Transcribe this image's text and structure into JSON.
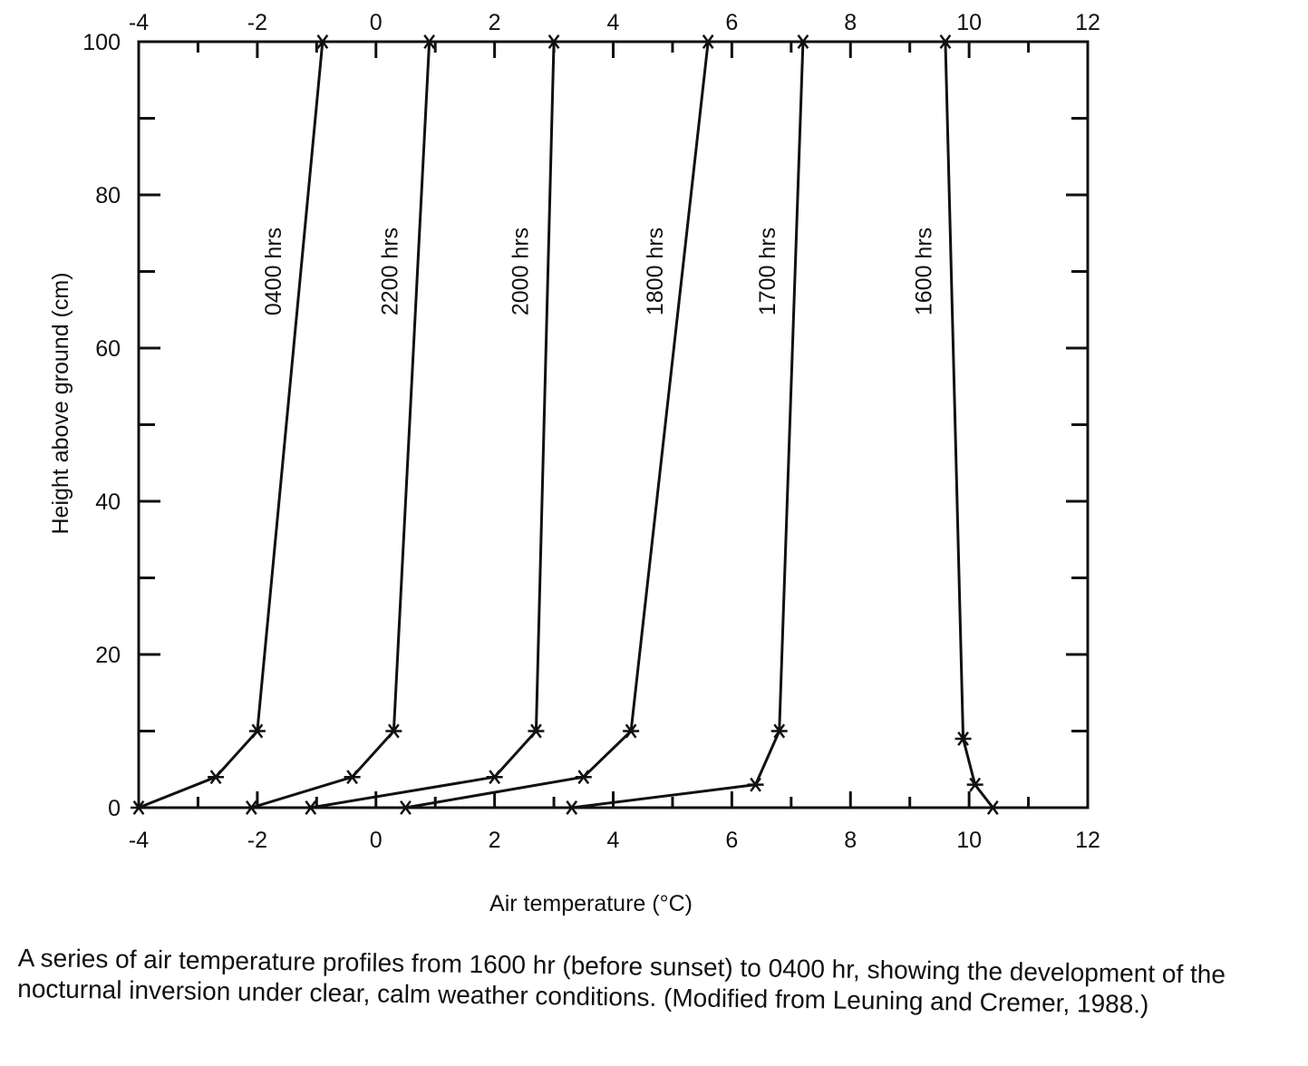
{
  "chart_data": {
    "type": "line",
    "xlabel": "Air temperature (°C)",
    "ylabel": "Height above ground (cm)",
    "xlim": [
      -4,
      12
    ],
    "ylim": [
      0,
      100
    ],
    "x_ticks": [
      "-4",
      "-2",
      "0",
      "2",
      "4",
      "6",
      "8",
      "10",
      "12"
    ],
    "y_ticks": [
      "0",
      "20",
      "40",
      "60",
      "80",
      "100"
    ],
    "marker": "asterisk",
    "series": [
      {
        "name": "0400 hrs",
        "points": [
          [
            -4.0,
            0
          ],
          [
            -2.7,
            4
          ],
          [
            -2.0,
            10
          ],
          [
            -0.9,
            100
          ]
        ]
      },
      {
        "name": "2200 hrs",
        "points": [
          [
            -2.1,
            0
          ],
          [
            -0.4,
            4
          ],
          [
            0.3,
            10
          ],
          [
            0.9,
            100
          ]
        ]
      },
      {
        "name": "2000 hrs",
        "points": [
          [
            -1.1,
            0
          ],
          [
            2.0,
            4
          ],
          [
            2.7,
            10
          ],
          [
            3.0,
            100
          ]
        ]
      },
      {
        "name": "1800 hrs",
        "points": [
          [
            0.5,
            0
          ],
          [
            3.5,
            4
          ],
          [
            4.3,
            10
          ],
          [
            5.6,
            100
          ]
        ]
      },
      {
        "name": "1700 hrs",
        "points": [
          [
            3.3,
            0
          ],
          [
            6.4,
            3
          ],
          [
            6.8,
            10
          ],
          [
            7.2,
            100
          ]
        ]
      },
      {
        "name": "1600 hrs",
        "points": [
          [
            10.4,
            0
          ],
          [
            10.1,
            3
          ],
          [
            9.9,
            9
          ],
          [
            9.6,
            100
          ]
        ]
      }
    ]
  },
  "caption": "A series of air temperature profiles from 1600 hr (before sunset) to 0400 hr, showing the development of the nocturnal inversion under clear, calm weather conditions.  (Modified from Leuning and Cremer, 1988.)"
}
